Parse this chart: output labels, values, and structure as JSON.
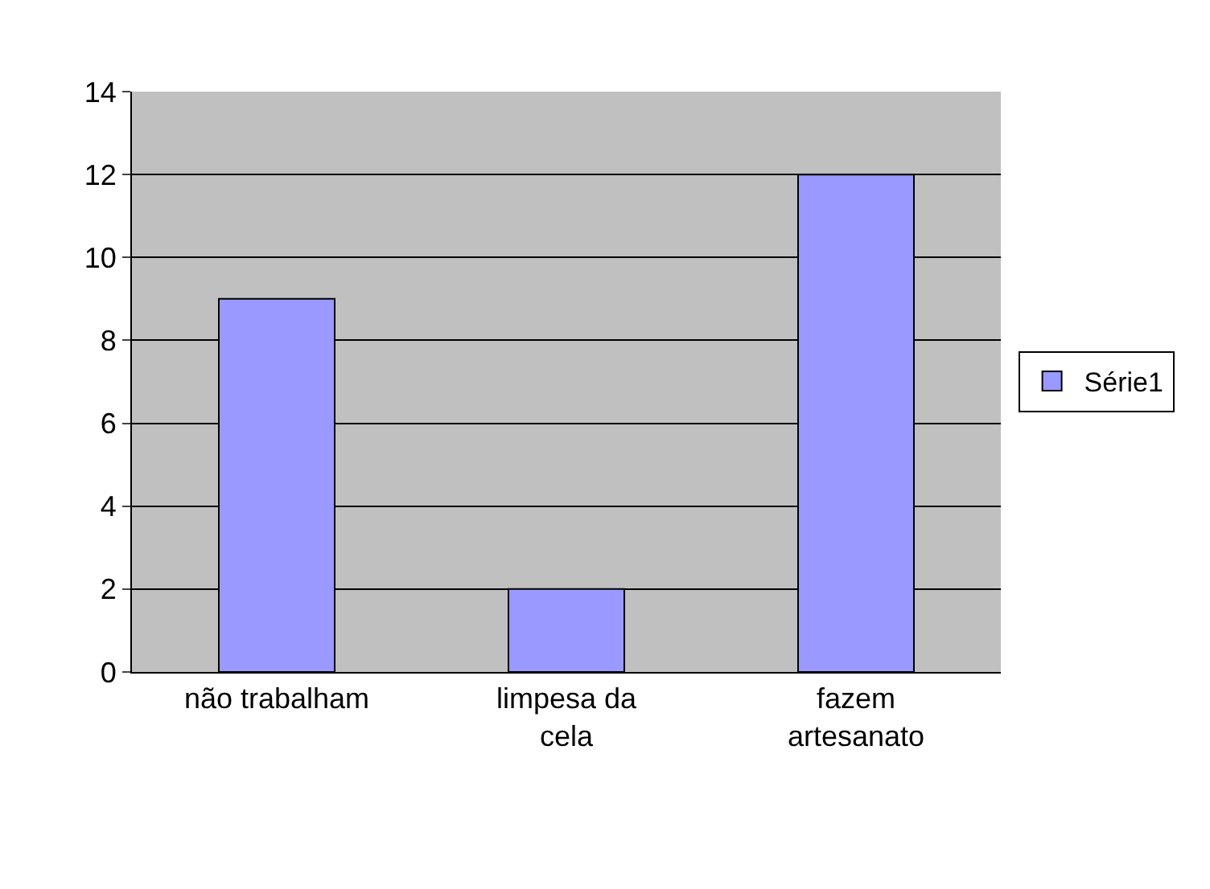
{
  "chart_data": {
    "type": "bar",
    "categories": [
      "não trabalham",
      "limpesa da\ncela",
      "fazem\nartesanato"
    ],
    "series": [
      {
        "name": "Série1",
        "color": "#9999ff",
        "values": [
          9,
          2,
          12
        ]
      }
    ],
    "ylim": [
      0,
      14
    ],
    "yticks": [
      0,
      2,
      4,
      6,
      8,
      10,
      12,
      14
    ],
    "grid": "y",
    "legend": "right"
  }
}
